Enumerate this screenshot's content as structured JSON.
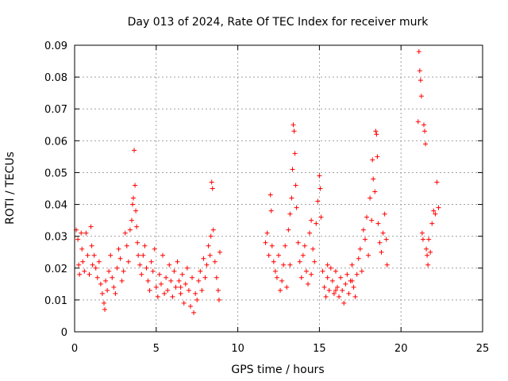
{
  "chart_data": {
    "type": "scatter",
    "title": "Day 013 of 2024, Rate Of TEC Index for receiver murk",
    "xlabel": "GPS time / hours",
    "ylabel": "ROTI / TECUs",
    "xlim": [
      0,
      25
    ],
    "ylim": [
      0,
      0.09
    ],
    "xticks": [
      0,
      5,
      10,
      15,
      20,
      25
    ],
    "xtick_labels": [
      "0",
      "5",
      "10",
      "15",
      "20",
      "25"
    ],
    "yticks": [
      0,
      0.01,
      0.02,
      0.03,
      0.04,
      0.05,
      0.06,
      0.07,
      0.08,
      0.09
    ],
    "ytick_labels": [
      "0",
      "0.01",
      "0.02",
      "0.03",
      "0.04",
      "0.05",
      "0.06",
      "0.07",
      "0.08",
      "0.09"
    ],
    "grid": true,
    "marker": "+",
    "series": [
      {
        "color": "#ff0000",
        "points": [
          [
            0.1,
            0.032
          ],
          [
            0.2,
            0.029
          ],
          [
            0.25,
            0.021
          ],
          [
            0.3,
            0.018
          ],
          [
            0.4,
            0.031
          ],
          [
            0.45,
            0.026
          ],
          [
            0.5,
            0.022
          ],
          [
            0.6,
            0.019
          ],
          [
            0.7,
            0.031
          ],
          [
            0.8,
            0.024
          ],
          [
            0.9,
            0.018
          ],
          [
            1.0,
            0.033
          ],
          [
            1.05,
            0.027
          ],
          [
            1.1,
            0.021
          ],
          [
            1.2,
            0.024
          ],
          [
            1.3,
            0.02
          ],
          [
            1.4,
            0.017
          ],
          [
            1.5,
            0.022
          ],
          [
            1.6,
            0.015
          ],
          [
            1.7,
            0.012
          ],
          [
            1.8,
            0.009
          ],
          [
            1.85,
            0.007
          ],
          [
            1.9,
            0.016
          ],
          [
            2.0,
            0.013
          ],
          [
            2.1,
            0.019
          ],
          [
            2.2,
            0.024
          ],
          [
            2.3,
            0.017
          ],
          [
            2.4,
            0.014
          ],
          [
            2.5,
            0.012
          ],
          [
            2.6,
            0.02
          ],
          [
            2.7,
            0.026
          ],
          [
            2.8,
            0.023
          ],
          [
            2.9,
            0.016
          ],
          [
            3.0,
            0.019
          ],
          [
            3.1,
            0.031
          ],
          [
            3.2,
            0.027
          ],
          [
            3.3,
            0.022
          ],
          [
            3.4,
            0.032
          ],
          [
            3.5,
            0.035
          ],
          [
            3.55,
            0.04
          ],
          [
            3.6,
            0.042
          ],
          [
            3.65,
            0.057
          ],
          [
            3.7,
            0.046
          ],
          [
            3.75,
            0.038
          ],
          [
            3.8,
            0.033
          ],
          [
            3.85,
            0.028
          ],
          [
            3.9,
            0.024
          ],
          [
            4.0,
            0.021
          ],
          [
            4.1,
            0.018
          ],
          [
            4.2,
            0.024
          ],
          [
            4.3,
            0.027
          ],
          [
            4.4,
            0.02
          ],
          [
            4.5,
            0.016
          ],
          [
            4.6,
            0.013
          ],
          [
            4.7,
            0.022
          ],
          [
            4.8,
            0.019
          ],
          [
            4.9,
            0.026
          ],
          [
            5.0,
            0.014
          ],
          [
            5.1,
            0.011
          ],
          [
            5.2,
            0.018
          ],
          [
            5.3,
            0.015
          ],
          [
            5.4,
            0.024
          ],
          [
            5.5,
            0.012
          ],
          [
            5.6,
            0.017
          ],
          [
            5.7,
            0.013
          ],
          [
            5.8,
            0.021
          ],
          [
            5.9,
            0.016
          ],
          [
            6.0,
            0.011
          ],
          [
            6.1,
            0.019
          ],
          [
            6.2,
            0.014
          ],
          [
            6.3,
            0.022
          ],
          [
            6.4,
            0.016
          ],
          [
            6.5,
            0.012
          ],
          [
            6.6,
            0.018
          ],
          [
            6.7,
            0.009
          ],
          [
            6.8,
            0.015
          ],
          [
            6.9,
            0.02
          ],
          [
            7.0,
            0.013
          ],
          [
            7.1,
            0.008
          ],
          [
            7.2,
            0.017
          ],
          [
            7.3,
            0.006
          ],
          [
            7.4,
            0.012
          ],
          [
            7.5,
            0.01
          ],
          [
            7.6,
            0.016
          ],
          [
            7.7,
            0.019
          ],
          [
            7.8,
            0.013
          ],
          [
            7.9,
            0.023
          ],
          [
            8.0,
            0.017
          ],
          [
            8.1,
            0.021
          ],
          [
            8.2,
            0.027
          ],
          [
            8.3,
            0.024
          ],
          [
            8.35,
            0.03
          ],
          [
            8.4,
            0.047
          ],
          [
            8.45,
            0.045
          ],
          [
            8.5,
            0.032
          ],
          [
            8.6,
            0.022
          ],
          [
            8.7,
            0.017
          ],
          [
            8.8,
            0.013
          ],
          [
            8.85,
            0.01
          ],
          [
            8.9,
            0.025
          ],
          [
            11.7,
            0.028
          ],
          [
            11.8,
            0.031
          ],
          [
            11.9,
            0.024
          ],
          [
            12.0,
            0.043
          ],
          [
            12.05,
            0.038
          ],
          [
            12.1,
            0.027
          ],
          [
            12.2,
            0.022
          ],
          [
            12.3,
            0.019
          ],
          [
            12.4,
            0.017
          ],
          [
            12.5,
            0.024
          ],
          [
            12.6,
            0.013
          ],
          [
            12.7,
            0.016
          ],
          [
            12.8,
            0.021
          ],
          [
            12.9,
            0.027
          ],
          [
            13.0,
            0.014
          ],
          [
            13.1,
            0.032
          ],
          [
            13.2,
            0.037
          ],
          [
            13.3,
            0.042
          ],
          [
            13.35,
            0.051
          ],
          [
            13.4,
            0.065
          ],
          [
            13.45,
            0.063
          ],
          [
            13.5,
            0.056
          ],
          [
            13.55,
            0.046
          ],
          [
            13.6,
            0.039
          ],
          [
            13.7,
            0.028
          ],
          [
            13.8,
            0.022
          ],
          [
            13.9,
            0.017
          ],
          [
            14.0,
            0.024
          ],
          [
            14.1,
            0.027
          ],
          [
            14.2,
            0.019
          ],
          [
            14.3,
            0.015
          ],
          [
            14.4,
            0.031
          ],
          [
            14.5,
            0.035
          ],
          [
            14.6,
            0.026
          ],
          [
            14.7,
            0.022
          ],
          [
            14.8,
            0.034
          ],
          [
            14.9,
            0.041
          ],
          [
            15.0,
            0.049
          ],
          [
            15.05,
            0.045
          ],
          [
            15.1,
            0.036
          ],
          [
            15.2,
            0.019
          ],
          [
            15.3,
            0.014
          ],
          [
            15.4,
            0.011
          ],
          [
            15.5,
            0.017
          ],
          [
            15.6,
            0.013
          ],
          [
            15.7,
            0.02
          ],
          [
            15.8,
            0.016
          ],
          [
            15.9,
            0.012
          ],
          [
            16.0,
            0.019
          ],
          [
            16.1,
            0.014
          ],
          [
            16.2,
            0.011
          ],
          [
            16.3,
            0.017
          ],
          [
            16.4,
            0.013
          ],
          [
            16.5,
            0.009
          ],
          [
            16.6,
            0.015
          ],
          [
            16.7,
            0.018
          ],
          [
            16.8,
            0.012
          ],
          [
            16.9,
            0.016
          ],
          [
            17.0,
            0.021
          ],
          [
            17.1,
            0.014
          ],
          [
            17.2,
            0.011
          ],
          [
            17.3,
            0.018
          ],
          [
            17.4,
            0.023
          ],
          [
            17.5,
            0.026
          ],
          [
            17.6,
            0.019
          ],
          [
            17.7,
            0.032
          ],
          [
            17.8,
            0.029
          ],
          [
            17.9,
            0.036
          ],
          [
            18.0,
            0.024
          ],
          [
            18.1,
            0.042
          ],
          [
            18.2,
            0.035
          ],
          [
            18.25,
            0.054
          ],
          [
            18.3,
            0.048
          ],
          [
            18.4,
            0.044
          ],
          [
            18.45,
            0.063
          ],
          [
            18.5,
            0.062
          ],
          [
            18.55,
            0.055
          ],
          [
            18.6,
            0.034
          ],
          [
            18.7,
            0.028
          ],
          [
            18.8,
            0.025
          ],
          [
            18.9,
            0.031
          ],
          [
            19.0,
            0.037
          ],
          [
            19.1,
            0.029
          ],
          [
            19.15,
            0.021
          ],
          [
            21.05,
            0.066
          ],
          [
            21.1,
            0.088
          ],
          [
            21.15,
            0.082
          ],
          [
            21.2,
            0.079
          ],
          [
            21.25,
            0.074
          ],
          [
            21.3,
            0.031
          ],
          [
            21.35,
            0.029
          ],
          [
            21.4,
            0.065
          ],
          [
            21.45,
            0.063
          ],
          [
            21.5,
            0.059
          ],
          [
            21.55,
            0.026
          ],
          [
            21.6,
            0.024
          ],
          [
            21.65,
            0.021
          ],
          [
            21.7,
            0.029
          ],
          [
            21.8,
            0.025
          ],
          [
            21.9,
            0.034
          ],
          [
            22.0,
            0.038
          ],
          [
            22.1,
            0.037
          ],
          [
            22.2,
            0.047
          ],
          [
            22.3,
            0.039
          ],
          [
            17.0,
            0.016
          ],
          [
            16.0,
            0.013
          ],
          [
            15.5,
            0.021
          ],
          [
            14.5,
            0.018
          ],
          [
            13.2,
            0.021
          ],
          [
            6.5,
            0.014
          ]
        ]
      }
    ]
  }
}
